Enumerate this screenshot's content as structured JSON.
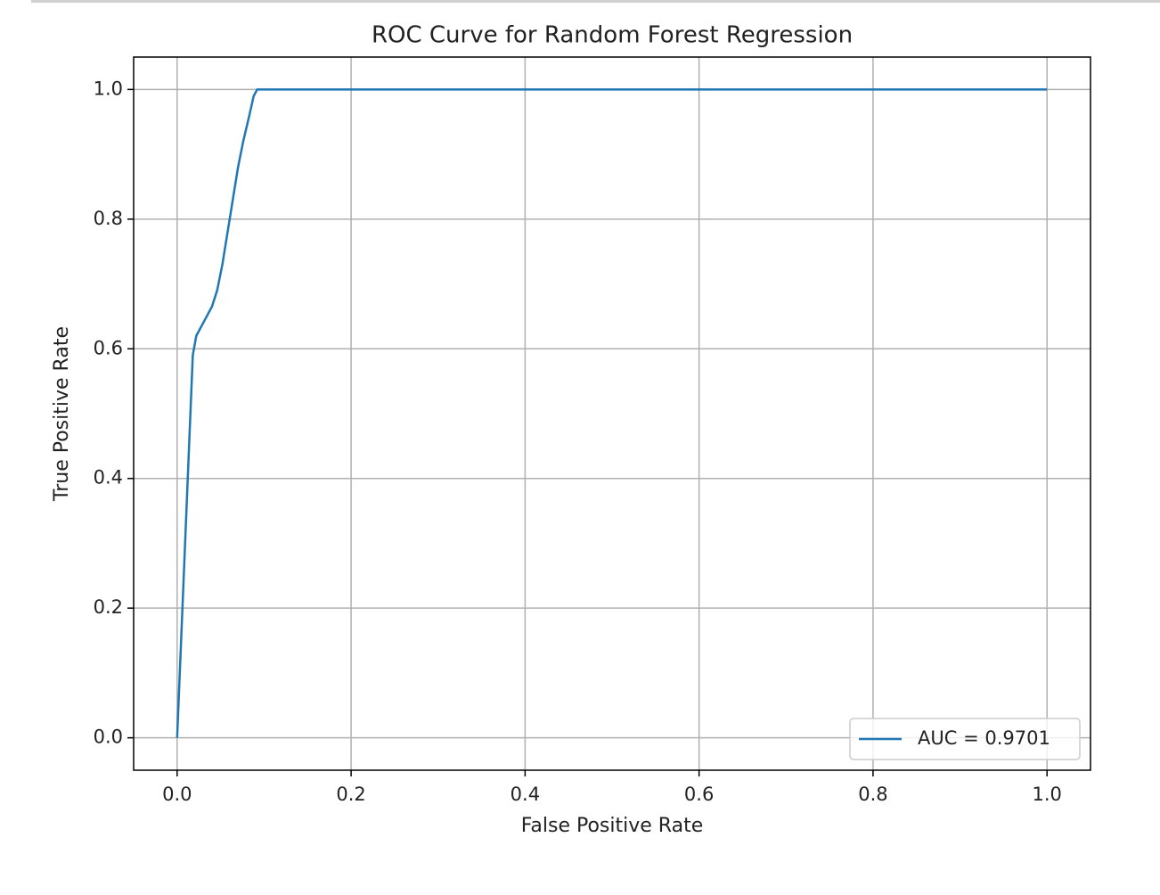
{
  "chart_data": {
    "type": "line",
    "title": "ROC Curve for Random Forest Regression",
    "x_label": "False Positive Rate",
    "y_label": "True Positive Rate",
    "x": [
      0,
      0.018,
      0.022,
      0.03,
      0.04,
      0.046,
      0.052,
      0.058,
      0.064,
      0.07,
      0.076,
      0.083,
      0.088,
      0.092,
      1.0
    ],
    "series": [
      {
        "name": "AUC = 0.9701",
        "color": "#1f77b4",
        "values": [
          0,
          0.59,
          0.62,
          0.64,
          0.665,
          0.69,
          0.73,
          0.78,
          0.83,
          0.88,
          0.92,
          0.96,
          0.99,
          1.0,
          1.0
        ]
      }
    ],
    "xlim": [
      -0.05,
      1.05
    ],
    "ylim": [
      -0.05,
      1.05
    ],
    "xticks": [
      {
        "value": 0,
        "label": "0.0"
      },
      0.2,
      0.4,
      0.6,
      0.8,
      {
        "value": 1,
        "label": "1.0"
      }
    ],
    "yticks": [
      {
        "value": 0,
        "label": "0.0"
      },
      0.2,
      0.4,
      0.6,
      0.8,
      {
        "value": 1,
        "label": "1.0"
      }
    ],
    "grid": true,
    "legend": "lower right"
  }
}
